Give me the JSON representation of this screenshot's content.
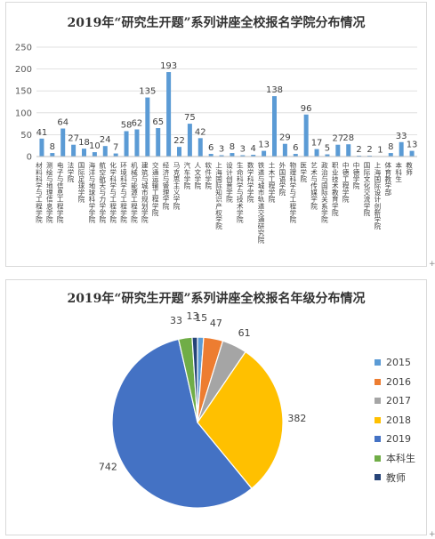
{
  "bar_chart": {
    "title": "2019年“研究生开题”系列讲座全校报名学院分布情况",
    "color": "#5B9BD5",
    "axis_color": "#595959",
    "grid_color": "#d9d9d9"
  },
  "pie_chart": {
    "title": "2019年“研究生开题”系列讲座全校报名年级分布情况",
    "label_color": "#404040"
  },
  "chart_data": [
    {
      "type": "bar",
      "title": "2019年“研究生开题”系列讲座全校报名学院分布情况",
      "xlabel": "",
      "ylabel": "",
      "ylim": [
        0,
        250
      ],
      "yticks": [
        0,
        50,
        100,
        150,
        200,
        250
      ],
      "grid": true,
      "legend": "none",
      "categories": [
        "材料科学与工程学院",
        "测绘与地理信息学院",
        "电子与信息工程学院",
        "法学院",
        "国际足球学院",
        "海洋与地球科学学院",
        "航空航天与力学学院",
        "化学科学与工程学院",
        "环境科学与工程学院",
        "机械与能源工程学院",
        "建筑与城市规划学院",
        "交通运输工程学院",
        "经济与管理学院",
        "马克思主义学院",
        "汽车学院",
        "人文学院",
        "软件学院",
        "上海国际知识产权学院",
        "设计创意学院",
        "生命科学与技术学院",
        "数学科学学院",
        "铁道与城市轨道交通研究院",
        "土木工程学院",
        "外国语学院",
        "物理科学与工程学院",
        "医学院",
        "艺术与传媒学院",
        "政治与国际关系学院",
        "职业技术教育学院",
        "中德工程学院",
        "中德学院",
        "国际文化交流学院",
        "上海国际设计创新学院",
        "体育教学部",
        "本科生",
        "教师"
      ],
      "values": [
        41,
        8,
        64,
        27,
        18,
        10,
        24,
        7,
        58,
        62,
        135,
        65,
        193,
        22,
        75,
        42,
        6,
        3,
        8,
        3,
        4,
        13,
        138,
        29,
        6,
        96,
        17,
        5,
        27,
        28,
        2,
        2,
        1,
        8,
        33,
        13
      ]
    },
    {
      "type": "pie",
      "title": "2019年“研究生开题”系列讲座全校报名年级分布情况",
      "legend": "right",
      "labels": [
        "2015",
        "2016",
        "2017",
        "2018",
        "2019",
        "本科生",
        "教师"
      ],
      "values": [
        15,
        47,
        61,
        382,
        742,
        33,
        13
      ],
      "colors": [
        "#5B9BD5",
        "#ED7D31",
        "#A5A5A5",
        "#FFC000",
        "#4472C4",
        "#70AD47",
        "#264478"
      ]
    }
  ]
}
